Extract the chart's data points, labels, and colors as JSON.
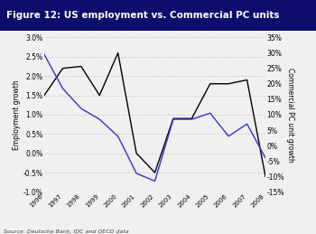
{
  "title": "Figure 12: US employment vs. Commercial PC units",
  "title_bg_color": "#0d0d6b",
  "title_text_color": "#ffffff",
  "source_text": "Source: Deutsche Bank, IDC and OECD data",
  "years": [
    1996,
    1997,
    1998,
    1999,
    2000,
    2001,
    2002,
    2003,
    2004,
    2005,
    2006,
    2007,
    2008
  ],
  "employment_growth": [
    0.015,
    0.022,
    0.0225,
    0.015,
    0.026,
    0.0,
    -0.005,
    0.009,
    0.009,
    0.018,
    0.018,
    0.019,
    -0.006
  ],
  "pc_unit_growth": [
    0.295,
    0.185,
    0.12,
    0.085,
    0.03,
    -0.09,
    -0.115,
    0.085,
    0.085,
    0.105,
    0.03,
    0.07,
    -0.04
  ],
  "employment_ylim": [
    -0.01,
    0.03
  ],
  "pc_ylim": [
    -0.15,
    0.35
  ],
  "employment_color": "#000000",
  "pc_color": "#3333cc",
  "grid_color": "#cccccc",
  "bg_color": "#f0f0f0",
  "legend_employment": "Employment growth",
  "legend_pc": "Commercial PC unit growth",
  "ylabel_left": "Employment growth",
  "ylabel_right": "Commercial PC unit growth"
}
